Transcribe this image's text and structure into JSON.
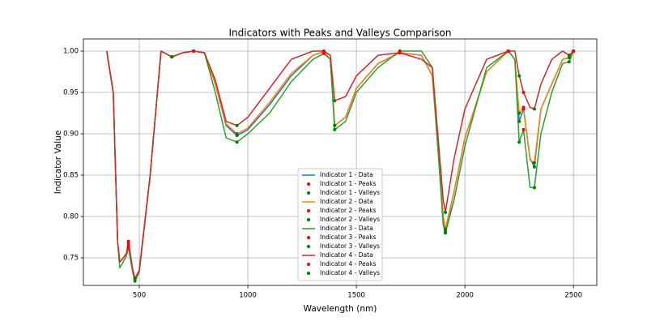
{
  "chart_data": {
    "type": "line",
    "title": "Indicators with Peaks and Valleys Comparison",
    "x_label": "Wavelength (nm)",
    "y_label": "Indicator Value",
    "xlim": [
      242.5,
      2607.5
    ],
    "ylim": [
      0.7167,
      1.0147
    ],
    "xticks": [
      500,
      1000,
      1500,
      2000,
      2500
    ],
    "yticks": [
      0.75,
      {
        "value": 0.8,
        "label": "0.80"
      },
      0.85,
      {
        "value": 0.9,
        "label": "0.90"
      },
      0.95,
      {
        "value": 1.0,
        "label": "1.00"
      }
    ],
    "grid": true,
    "legend": "lower center",
    "x": [
      350,
      380,
      400,
      410,
      420,
      440,
      450,
      470,
      480,
      500,
      550,
      600,
      650,
      700,
      750,
      800,
      850,
      900,
      950,
      1000,
      1100,
      1200,
      1300,
      1350,
      1380,
      1400,
      1450,
      1500,
      1600,
      1700,
      1800,
      1850,
      1900,
      1910,
      1950,
      2000,
      2100,
      2200,
      2230,
      2250,
      2270,
      2300,
      2320,
      2350,
      2400,
      2450,
      2480,
      2500
    ],
    "series": [
      {
        "name": "Indicator 1 - Data",
        "type": "line",
        "color": "#1f77b4",
        "values": [
          1.0,
          0.95,
          0.77,
          0.745,
          0.748,
          0.755,
          0.765,
          0.735,
          0.725,
          0.735,
          0.85,
          1.0,
          0.993,
          0.998,
          1.0,
          0.998,
          0.96,
          0.91,
          0.898,
          0.905,
          0.935,
          0.97,
          0.995,
          0.999,
          0.99,
          0.91,
          0.92,
          0.955,
          0.985,
          0.998,
          0.995,
          0.97,
          0.8,
          0.782,
          0.83,
          0.895,
          0.975,
          1.0,
          0.99,
          0.915,
          0.93,
          0.87,
          0.86,
          0.93,
          0.96,
          0.99,
          0.992,
          1.0
        ]
      },
      {
        "name": "Indicator 1 - Peaks",
        "type": "scatter",
        "color": "#ff0000",
        "x": [
          450,
          750,
          1350,
          1700,
          2200,
          2270,
          2500
        ],
        "values": [
          0.765,
          1.0,
          0.999,
          0.998,
          1.0,
          0.93,
          1.0
        ]
      },
      {
        "name": "Indicator 1 - Valleys",
        "type": "scatter",
        "color": "#008000",
        "x": [
          480,
          650,
          950,
          1400,
          1910,
          2250,
          2320,
          2480
        ],
        "values": [
          0.725,
          0.993,
          0.898,
          0.91,
          0.782,
          0.915,
          0.86,
          0.992
        ]
      },
      {
        "name": "Indicator 2 - Data",
        "type": "line",
        "color": "#ff7f0e",
        "values": [
          1.0,
          0.95,
          0.77,
          0.745,
          0.748,
          0.755,
          0.768,
          0.735,
          0.725,
          0.735,
          0.85,
          1.0,
          0.993,
          0.998,
          1.0,
          0.998,
          0.96,
          0.912,
          0.9,
          0.907,
          0.938,
          0.973,
          0.995,
          0.999,
          0.99,
          0.91,
          0.92,
          0.955,
          0.985,
          0.998,
          0.995,
          0.97,
          0.8,
          0.785,
          0.83,
          0.895,
          0.975,
          1.0,
          0.99,
          0.925,
          0.932,
          0.868,
          0.865,
          0.93,
          0.96,
          0.99,
          0.992,
          1.0
        ]
      },
      {
        "name": "Indicator 2 - Peaks",
        "type": "scatter",
        "color": "#ff0000",
        "x": [
          450,
          750,
          1350,
          1700,
          2200,
          2270,
          2500
        ],
        "values": [
          0.768,
          1.0,
          0.999,
          0.998,
          1.0,
          0.932,
          1.0
        ]
      },
      {
        "name": "Indicator 2 - Valleys",
        "type": "scatter",
        "color": "#008000",
        "x": [
          480,
          650,
          950,
          1400,
          1910,
          2250,
          2320,
          2480
        ],
        "values": [
          0.725,
          0.993,
          0.9,
          0.91,
          0.785,
          0.925,
          0.865,
          0.992
        ]
      },
      {
        "name": "Indicator 3 - Data",
        "type": "line",
        "color": "#2ca02c",
        "values": [
          1.0,
          0.95,
          0.77,
          0.738,
          0.742,
          0.752,
          0.762,
          0.732,
          0.722,
          0.733,
          0.85,
          1.0,
          0.993,
          0.998,
          1.0,
          0.998,
          0.95,
          0.895,
          0.89,
          0.9,
          0.925,
          0.963,
          0.99,
          0.997,
          0.99,
          0.905,
          0.915,
          0.95,
          0.98,
          1.0,
          1.0,
          0.98,
          0.79,
          0.78,
          0.82,
          0.885,
          0.98,
          1.0,
          0.99,
          0.89,
          0.905,
          0.835,
          0.835,
          0.9,
          0.95,
          0.985,
          0.987,
          1.0
        ]
      },
      {
        "name": "Indicator 3 - Peaks",
        "type": "scatter",
        "color": "#ff0000",
        "x": [
          450,
          750,
          1350,
          1700,
          2200,
          2270,
          2500
        ],
        "values": [
          0.762,
          1.0,
          0.997,
          1.0,
          1.0,
          0.905,
          1.0
        ]
      },
      {
        "name": "Indicator 3 - Valleys",
        "type": "scatter",
        "color": "#008000",
        "x": [
          480,
          650,
          950,
          1400,
          1910,
          2250,
          2320,
          2480
        ],
        "values": [
          0.722,
          0.993,
          0.89,
          0.905,
          0.78,
          0.89,
          0.835,
          0.987
        ]
      },
      {
        "name": "Indicator 4 - Data",
        "type": "line",
        "color": "#d62728",
        "values": [
          1.0,
          0.95,
          0.77,
          0.745,
          0.748,
          0.755,
          0.77,
          0.735,
          0.725,
          0.735,
          0.85,
          1.0,
          0.993,
          0.998,
          1.0,
          0.998,
          0.965,
          0.915,
          0.91,
          0.92,
          0.955,
          0.99,
          1.0,
          1.0,
          0.995,
          0.94,
          0.945,
          0.97,
          0.995,
          0.998,
          0.99,
          0.98,
          0.82,
          0.805,
          0.87,
          0.93,
          0.99,
          1.0,
          1.0,
          0.97,
          0.95,
          0.932,
          0.93,
          0.96,
          0.99,
          1.0,
          0.995,
          1.0
        ]
      },
      {
        "name": "Indicator 4 - Peaks",
        "type": "scatter",
        "color": "#ff0000",
        "x": [
          450,
          750,
          1350,
          1700,
          2200,
          2270,
          2500
        ],
        "values": [
          0.77,
          1.0,
          1.0,
          0.998,
          1.0,
          0.95,
          1.0
        ]
      },
      {
        "name": "Indicator 4 - Valleys",
        "type": "scatter",
        "color": "#008000",
        "x": [
          480,
          650,
          950,
          1400,
          1910,
          2250,
          2320,
          2480
        ],
        "values": [
          0.725,
          0.993,
          0.91,
          0.94,
          0.805,
          0.97,
          0.93,
          0.995
        ]
      }
    ]
  }
}
